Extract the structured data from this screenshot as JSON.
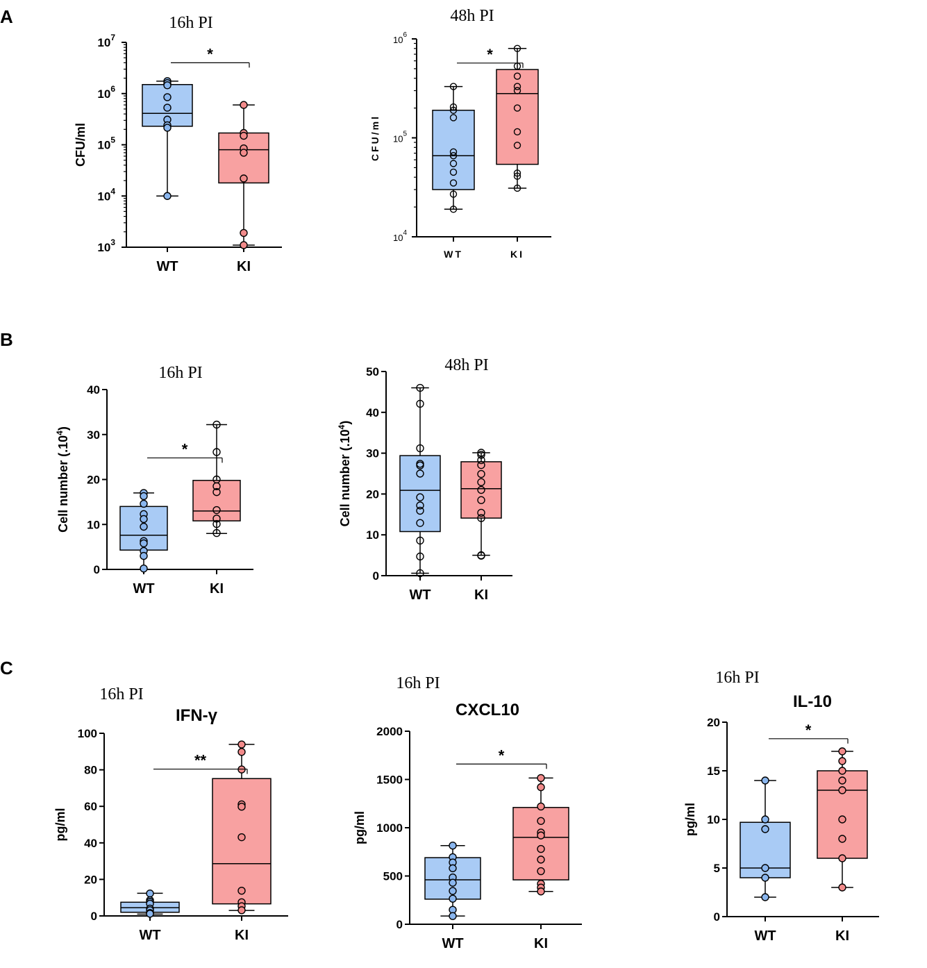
{
  "panel_labels": [
    "A",
    "B",
    "C"
  ],
  "colors": {
    "wt_fill": "#a9cbf5",
    "wt_dot": "#8ab6ee",
    "ki_fill": "#f8a1a1",
    "ki_dot": "#f28b8b",
    "axis": "#000000"
  },
  "chart_data": [
    {
      "id": "a1",
      "panel": "A",
      "type": "box",
      "title": "16h PI",
      "subtitle": "",
      "ylabel": "CFU/ml",
      "yscale": "log",
      "ylim": [
        1000,
        10000000
      ],
      "yticks": [
        {
          "value": 10000000,
          "mant": "10",
          "exp": "7"
        },
        {
          "value": 1000000,
          "mant": "10",
          "exp": "6"
        },
        {
          "value": 100000,
          "mant": "10",
          "exp": "5"
        },
        {
          "value": 10000,
          "mant": "10",
          "exp": "4"
        },
        {
          "value": 1000,
          "mant": "10",
          "exp": "3"
        }
      ],
      "categories": [
        "WT",
        "KI"
      ],
      "groups": [
        {
          "name": "WT",
          "min": 10000,
          "q1": 230000,
          "median": 410000,
          "q3": 1500000,
          "max": 1750000,
          "points": [
            1750000,
            1600000,
            1450000,
            850000,
            530000,
            310000,
            240000,
            215000,
            10000
          ],
          "dot_fill": true
        },
        {
          "name": "KI",
          "min": 1100,
          "q1": 18000,
          "median": 80000,
          "q3": 170000,
          "max": 600000,
          "points": [
            600000,
            170000,
            150000,
            85000,
            70000,
            22000,
            1900,
            1100
          ],
          "dot_fill": true
        }
      ],
      "significance": [
        {
          "label": "*",
          "level": 4000000
        }
      ]
    },
    {
      "id": "a2",
      "panel": "A",
      "type": "box",
      "title": "48h PI",
      "subtitle": "",
      "ylabel": "CFU/ml",
      "yscale": "log",
      "ylim": [
        10000,
        1000000
      ],
      "yticks": [
        {
          "value": 1000000,
          "mant": "10",
          "exp": "6"
        },
        {
          "value": 100000,
          "mant": "10",
          "exp": "5"
        },
        {
          "value": 10000,
          "mant": "10",
          "exp": "4"
        }
      ],
      "categories": [
        "WT",
        "KI"
      ],
      "groups": [
        {
          "name": "WT",
          "min": 19000,
          "q1": 30000,
          "median": 66000,
          "q3": 190000,
          "max": 330000,
          "points": [
            330000,
            205000,
            190000,
            160000,
            72000,
            66000,
            55000,
            45000,
            35000,
            27000,
            19000
          ],
          "dot_fill": false
        },
        {
          "name": "KI",
          "min": 31000,
          "q1": 54000,
          "median": 280000,
          "q3": 490000,
          "max": 800000,
          "points": [
            800000,
            530000,
            420000,
            330000,
            300000,
            200000,
            115000,
            84000,
            44000,
            41000,
            31000
          ],
          "dot_fill": false
        }
      ],
      "significance": [
        {
          "label": "*",
          "level": 570000
        }
      ]
    },
    {
      "id": "b1",
      "panel": "B",
      "type": "box",
      "title": "16h PI",
      "subtitle": "",
      "ylabel": "Cell number (.10",
      "ylabel_exp": "4",
      "ylabel_end": ")",
      "yscale": "linear",
      "ylim": [
        0,
        40
      ],
      "yticks": [
        {
          "value": 40,
          "label": "40"
        },
        {
          "value": 30,
          "label": "30"
        },
        {
          "value": 20,
          "label": "20"
        },
        {
          "value": 10,
          "label": "10"
        },
        {
          "value": 0,
          "label": "0"
        }
      ],
      "categories": [
        "WT",
        "KI"
      ],
      "groups": [
        {
          "name": "WT",
          "min": 0,
          "q1": 4.3,
          "median": 7.6,
          "q3": 14,
          "max": 17,
          "points": [
            17,
            16.3,
            14.6,
            12.3,
            11.2,
            9.5,
            6.3,
            5.8,
            4.1,
            3,
            0.2
          ],
          "dot_fill": true
        },
        {
          "name": "KI",
          "min": 8,
          "q1": 10.8,
          "median": 13,
          "q3": 19.8,
          "max": 32.2,
          "points": [
            32.2,
            26.1,
            20,
            18.5,
            17.2,
            13.2,
            11.3,
            10.1,
            8.1
          ],
          "dot_fill": false
        }
      ],
      "significance": [
        {
          "label": "*",
          "level": 24.8
        }
      ]
    },
    {
      "id": "b2",
      "panel": "B",
      "type": "box",
      "title": "48h PI",
      "subtitle": "",
      "ylabel": "Cell number (.10",
      "ylabel_exp": "4",
      "ylabel_end": ")",
      "yscale": "linear",
      "ylim": [
        0,
        50
      ],
      "yticks": [
        {
          "value": 50,
          "label": "50"
        },
        {
          "value": 40,
          "label": "40"
        },
        {
          "value": 30,
          "label": "30"
        },
        {
          "value": 20,
          "label": "20"
        },
        {
          "value": 10,
          "label": "10"
        },
        {
          "value": 0,
          "label": "0"
        }
      ],
      "categories": [
        "WT",
        "KI"
      ],
      "groups": [
        {
          "name": "WT",
          "min": 0.6,
          "q1": 10.8,
          "median": 20.9,
          "q3": 29.4,
          "max": 46,
          "points": [
            46,
            42.1,
            31.2,
            27.4,
            27,
            25,
            19.2,
            17.2,
            15.9,
            12.9,
            8.6,
            4.7,
            0.6
          ],
          "dot_fill": false
        },
        {
          "name": "KI",
          "min": 5,
          "q1": 14.1,
          "median": 21.3,
          "q3": 27.9,
          "max": 30.1,
          "points": [
            30.1,
            29.6,
            28.3,
            27.1,
            24.9,
            22.9,
            21,
            18.5,
            15.4,
            14.1,
            5,
            4.9
          ],
          "dot_fill": false
        }
      ],
      "significance": []
    },
    {
      "id": "c1",
      "panel": "C",
      "type": "box",
      "title": "16h PI",
      "subtitle": "IFN-γ",
      "ylabel": "pg/ml",
      "yscale": "linear",
      "ylim": [
        0,
        100
      ],
      "yticks": [
        {
          "value": 100,
          "label": "100"
        },
        {
          "value": 80,
          "label": "80"
        },
        {
          "value": 60,
          "label": "60"
        },
        {
          "value": 40,
          "label": "40"
        },
        {
          "value": 20,
          "label": "20"
        },
        {
          "value": 0,
          "label": "0"
        }
      ],
      "categories": [
        "WT",
        "KI"
      ],
      "groups": [
        {
          "name": "WT",
          "min": 1,
          "q1": 2,
          "median": 4.5,
          "q3": 7.5,
          "max": 12.4,
          "points": [
            12.3,
            8.6,
            7.7,
            6.7,
            4,
            3.1,
            1.6,
            1.2
          ],
          "dot_fill": true
        },
        {
          "name": "KI",
          "min": 3,
          "q1": 6.6,
          "median": 28.6,
          "q3": 75.2,
          "max": 93.9,
          "points": [
            93.9,
            89.8,
            80.2,
            61.1,
            59.8,
            43.1,
            13.8,
            7.5,
            5.3,
            3.1
          ],
          "dot_fill": true
        }
      ],
      "significance": [
        {
          "label": "**",
          "level": 80.4
        }
      ]
    },
    {
      "id": "c2",
      "panel": "C",
      "type": "box",
      "title": "16h PI",
      "subtitle": "CXCL10",
      "ylabel": "pg/ml",
      "yscale": "linear",
      "ylim": [
        0,
        2000
      ],
      "yticks": [
        {
          "value": 2000,
          "label": "2000"
        },
        {
          "value": 1500,
          "label": "1500"
        },
        {
          "value": 1000,
          "label": "1000"
        },
        {
          "value": 500,
          "label": "500"
        },
        {
          "value": 0,
          "label": "0"
        }
      ],
      "categories": [
        "WT",
        "KI"
      ],
      "groups": [
        {
          "name": "WT",
          "min": 85,
          "q1": 260,
          "median": 460,
          "q3": 690,
          "max": 815,
          "points": [
            815,
            695,
            640,
            580,
            485,
            430,
            345,
            265,
            150,
            85
          ],
          "dot_fill": true
        },
        {
          "name": "KI",
          "min": 340,
          "q1": 460,
          "median": 900,
          "q3": 1210,
          "max": 1515,
          "points": [
            1515,
            1420,
            1220,
            1070,
            950,
            920,
            780,
            670,
            550,
            420,
            380,
            340
          ],
          "dot_fill": true
        }
      ],
      "significance": [
        {
          "label": "*",
          "level": 1660
        }
      ]
    },
    {
      "id": "c3",
      "panel": "C",
      "type": "box",
      "title": "16h PI",
      "subtitle": "IL-10",
      "ylabel": "pg/ml",
      "yscale": "linear",
      "ylim": [
        0,
        20
      ],
      "yticks": [
        {
          "value": 20,
          "label": "20"
        },
        {
          "value": 15,
          "label": "15"
        },
        {
          "value": 10,
          "label": "10"
        },
        {
          "value": 5,
          "label": "5"
        },
        {
          "value": 0,
          "label": "0"
        }
      ],
      "categories": [
        "WT",
        "KI"
      ],
      "groups": [
        {
          "name": "WT",
          "min": 2,
          "q1": 4,
          "median": 5,
          "q3": 9.7,
          "max": 14,
          "points": [
            14,
            10,
            9,
            5,
            4,
            2
          ],
          "dot_fill": true
        },
        {
          "name": "KI",
          "min": 3,
          "q1": 6,
          "median": 13,
          "q3": 15,
          "max": 17,
          "points": [
            17,
            16,
            15,
            14,
            13,
            10,
            8,
            6,
            3
          ],
          "dot_fill": true
        }
      ],
      "significance": [
        {
          "label": "*",
          "level": 18.3
        }
      ]
    }
  ]
}
